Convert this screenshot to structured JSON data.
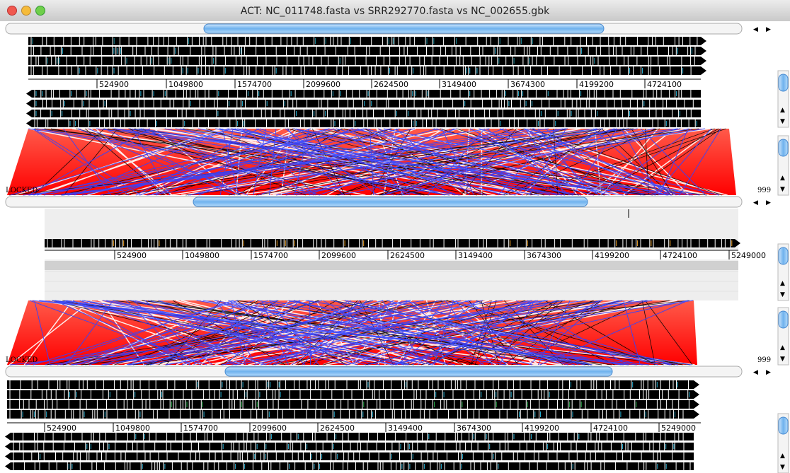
{
  "window": {
    "title": "ACT: NC_011748.fasta vs SRR292770.fasta vs NC_002655.gbk"
  },
  "panels": [
    {
      "ruler": [
        "524900",
        "1049800",
        "1574700",
        "2099600",
        "2624500",
        "3149400",
        "3674300",
        "4199200",
        "4724100"
      ]
    },
    {
      "ruler": [
        "524900",
        "1049800",
        "1574700",
        "2099600",
        "2624500",
        "3149400",
        "3674300",
        "4199200",
        "4724100",
        "5249000"
      ]
    },
    {
      "ruler": [
        "524900",
        "1049800",
        "1574700",
        "2099600",
        "2624500",
        "3149400",
        "3674300",
        "4199200",
        "4724100",
        "5249000"
      ]
    }
  ],
  "comparisons": [
    {
      "status": "LOCKED",
      "score": "999"
    },
    {
      "status": "LOCKED",
      "score": "999"
    }
  ]
}
